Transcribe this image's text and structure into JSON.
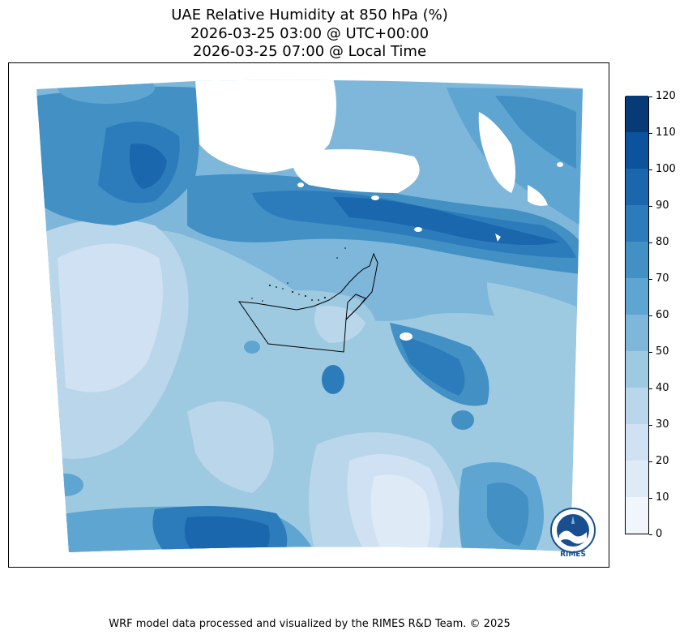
{
  "title": {
    "line1": "UAE Relative Humidity at 850 hPa (%)",
    "line2": "2026-03-25 03:00 @ UTC+00:00",
    "line3": "2026-03-25 07:00 @ Local Time"
  },
  "colorbar": {
    "levels": [
      "0",
      "10",
      "20",
      "30",
      "40",
      "50",
      "60",
      "70",
      "80",
      "90",
      "100",
      "110",
      "120"
    ],
    "colors": [
      "#f0f6fc",
      "#deebf7",
      "#cfe1f2",
      "#bad6eb",
      "#9ecae1",
      "#7fb7da",
      "#5ea5d2",
      "#4290c4",
      "#2c7bbb",
      "#1a67ad",
      "#0b539c",
      "#083b75"
    ]
  },
  "logo": {
    "text": "RIMES"
  },
  "footer": {
    "credit": "WRF model data processed and visualized by the RIMES R&D Team. © 2025"
  }
}
